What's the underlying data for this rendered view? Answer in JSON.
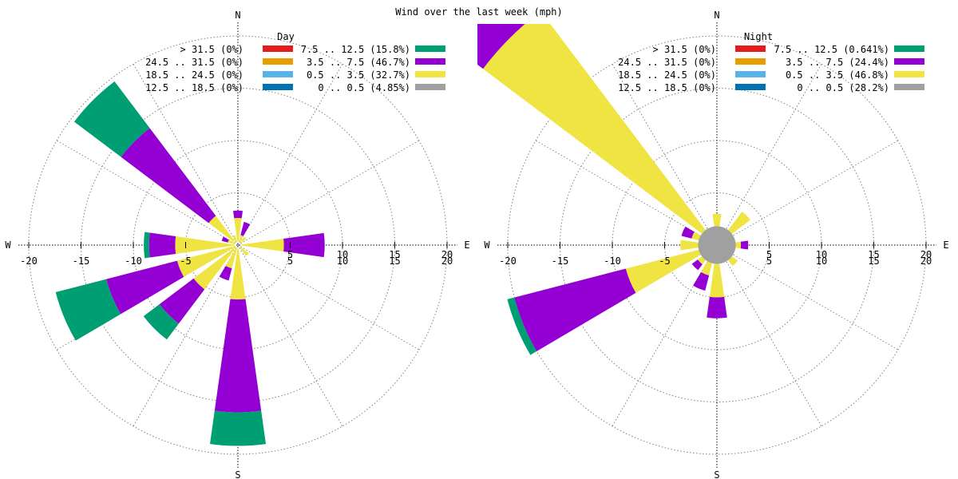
{
  "title": "Wind over the last week (mph)",
  "compass": {
    "n": "N",
    "s": "S",
    "e": "E",
    "w": "W"
  },
  "colors": {
    "gt31_5": "#e41a1c",
    "24_5_31_5": "#e69f00",
    "18_5_24_5": "#56b4e9",
    "12_5_18_5": "#0072b2",
    "7_5_12_5": "#009e73",
    "3_5_7_5": "#9400d3",
    "0_5_3_5": "#f0e442",
    "calm": "#a0a0a0",
    "grid": "#808080"
  },
  "chart_data": [
    {
      "type": "wind-rose",
      "title": "Day",
      "axis_ticks": [
        -20,
        -15,
        -10,
        -5,
        5,
        10,
        15,
        20
      ],
      "rmax": 20,
      "legend": [
        {
          "label": "> 31.5 (0%)",
          "color_key": "gt31_5"
        },
        {
          "label": "24.5 .. 31.5 (0%)",
          "color_key": "24_5_31_5"
        },
        {
          "label": "18.5 .. 24.5 (0%)",
          "color_key": "18_5_24_5"
        },
        {
          "label": "12.5 .. 18.5 (0%)",
          "color_key": "12_5_18_5"
        },
        {
          "label": "7.5 .. 12.5 (15.8%)",
          "color_key": "7_5_12_5"
        },
        {
          "label": "3.5 .. 7.5 (46.7%)",
          "color_key": "3_5_7_5"
        },
        {
          "label": "0.5 .. 3.5 (32.7%)",
          "color_key": "0_5_3_5"
        },
        {
          "label": "0 .. 0.5 (4.85%)",
          "color_key": "calm"
        }
      ],
      "calm_radius": 0.1,
      "sectors": [
        {
          "dir": 0,
          "bands": [
            {
              "band": "0_5_3_5",
              "r0": 0.3,
              "r1": 2.6
            },
            {
              "band": "3_5_7_5",
              "r0": 2.6,
              "r1": 3.3
            }
          ]
        },
        {
          "dir": 22.5,
          "bands": [
            {
              "band": "0_5_3_5",
              "r0": 0.3,
              "r1": 1.0
            },
            {
              "band": "3_5_7_5",
              "r0": 1.0,
              "r1": 2.3
            }
          ]
        },
        {
          "dir": 45,
          "bands": [
            {
              "band": "0_5_3_5",
              "r0": 0.3,
              "r1": 1.0
            }
          ]
        },
        {
          "dir": 90,
          "bands": [
            {
              "band": "0_5_3_5",
              "r0": 0.3,
              "r1": 4.4
            },
            {
              "band": "3_5_7_5",
              "r0": 4.4,
              "r1": 8.3
            }
          ]
        },
        {
          "dir": 135,
          "bands": [
            {
              "band": "0_5_3_5",
              "r0": 0.3,
              "r1": 1.3
            }
          ]
        },
        {
          "dir": 180,
          "bands": [
            {
              "band": "0_5_3_5",
              "r0": 0.3,
              "r1": 5.2
            },
            {
              "band": "3_5_7_5",
              "r0": 5.2,
              "r1": 16.0
            },
            {
              "band": "7_5_12_5",
              "r0": 16.0,
              "r1": 19.2
            }
          ]
        },
        {
          "dir": 202.5,
          "bands": [
            {
              "band": "0_5_3_5",
              "r0": 0.3,
              "r1": 2.3
            },
            {
              "band": "3_5_7_5",
              "r0": 2.3,
              "r1": 3.5
            }
          ]
        },
        {
          "dir": 225,
          "bands": [
            {
              "band": "0_5_3_5",
              "r0": 0.3,
              "r1": 5.3
            },
            {
              "band": "3_5_7_5",
              "r0": 5.3,
              "r1": 9.4
            },
            {
              "band": "7_5_12_5",
              "r0": 9.4,
              "r1": 11.3
            }
          ]
        },
        {
          "dir": 247.5,
          "bands": [
            {
              "band": "0_5_3_5",
              "r0": 0.3,
              "r1": 6.0
            },
            {
              "band": "3_5_7_5",
              "r0": 6.0,
              "r1": 13.0
            },
            {
              "band": "7_5_12_5",
              "r0": 13.0,
              "r1": 18.0
            }
          ]
        },
        {
          "dir": 270,
          "bands": [
            {
              "band": "0_5_3_5",
              "r0": 0.3,
              "r1": 6.0
            },
            {
              "band": "3_5_7_5",
              "r0": 6.0,
              "r1": 8.5
            },
            {
              "band": "7_5_12_5",
              "r0": 8.5,
              "r1": 9.0
            }
          ]
        },
        {
          "dir": 292.5,
          "bands": [
            {
              "band": "0_5_3_5",
              "r0": 0.3,
              "r1": 1.0
            },
            {
              "band": "3_5_7_5",
              "r0": 1.0,
              "r1": 1.6
            }
          ]
        },
        {
          "dir": 315,
          "bands": [
            {
              "band": "0_5_3_5",
              "r0": 0.3,
              "r1": 3.5
            },
            {
              "band": "3_5_7_5",
              "r0": 3.5,
              "r1": 14.0
            },
            {
              "band": "7_5_12_5",
              "r0": 14.0,
              "r1": 19.6
            }
          ]
        },
        {
          "dir": 337.5,
          "bands": [
            {
              "band": "0_5_3_5",
              "r0": 0.3,
              "r1": 1.0
            }
          ]
        }
      ]
    },
    {
      "type": "wind-rose",
      "title": "Night",
      "axis_ticks": [
        -20,
        -15,
        -10,
        -5,
        5,
        10,
        15,
        20
      ],
      "rmax": 20,
      "legend": [
        {
          "label": "> 31.5 (0%)",
          "color_key": "gt31_5"
        },
        {
          "label": "24.5 .. 31.5 (0%)",
          "color_key": "24_5_31_5"
        },
        {
          "label": "18.5 .. 24.5 (0%)",
          "color_key": "18_5_24_5"
        },
        {
          "label": "12.5 .. 18.5 (0%)",
          "color_key": "12_5_18_5"
        },
        {
          "label": "7.5 .. 12.5 (0.641%)",
          "color_key": "7_5_12_5"
        },
        {
          "label": "3.5 .. 7.5 (24.4%)",
          "color_key": "3_5_7_5"
        },
        {
          "label": "0.5 .. 3.5 (46.8%)",
          "color_key": "0_5_3_5"
        },
        {
          "label": "0 .. 0.5 (28.2%)",
          "color_key": "calm"
        }
      ],
      "calm_radius": 1.8,
      "sectors": [
        {
          "dir": 0,
          "bands": [
            {
              "band": "0_5_3_5",
              "r0": 1.8,
              "r1": 3.0
            }
          ]
        },
        {
          "dir": 45,
          "bands": [
            {
              "band": "0_5_3_5",
              "r0": 1.8,
              "r1": 4.0
            }
          ]
        },
        {
          "dir": 90,
          "bands": [
            {
              "band": "0_5_3_5",
              "r0": 1.8,
              "r1": 2.3
            },
            {
              "band": "3_5_7_5",
              "r0": 2.3,
              "r1": 3.0
            }
          ]
        },
        {
          "dir": 135,
          "bands": [
            {
              "band": "0_5_3_5",
              "r0": 1.8,
              "r1": 2.5
            }
          ]
        },
        {
          "dir": 180,
          "bands": [
            {
              "band": "0_5_3_5",
              "r0": 1.8,
              "r1": 5.0
            },
            {
              "band": "3_5_7_5",
              "r0": 5.0,
              "r1": 7.0
            }
          ]
        },
        {
          "dir": 202.5,
          "bands": [
            {
              "band": "0_5_3_5",
              "r0": 1.8,
              "r1": 3.0
            },
            {
              "band": "3_5_7_5",
              "r0": 3.0,
              "r1": 4.5
            }
          ]
        },
        {
          "dir": 225,
          "bands": [
            {
              "band": "0_5_3_5",
              "r0": 1.8,
              "r1": 2.3
            },
            {
              "band": "3_5_7_5",
              "r0": 2.3,
              "r1": 3.0
            }
          ]
        },
        {
          "dir": 247.5,
          "bands": [
            {
              "band": "0_5_3_5",
              "r0": 1.8,
              "r1": 9.0
            },
            {
              "band": "3_5_7_5",
              "r0": 9.0,
              "r1": 20.0
            },
            {
              "band": "7_5_12_5",
              "r0": 20.0,
              "r1": 20.7
            }
          ]
        },
        {
          "dir": 270,
          "bands": [
            {
              "band": "0_5_3_5",
              "r0": 1.8,
              "r1": 3.5
            }
          ]
        },
        {
          "dir": 292.5,
          "bands": [
            {
              "band": "0_5_3_5",
              "r0": 1.8,
              "r1": 2.5
            },
            {
              "band": "3_5_7_5",
              "r0": 2.5,
              "r1": 3.5
            }
          ]
        },
        {
          "dir": 315,
          "bands": [
            {
              "band": "0_5_3_5",
              "r0": 1.8,
              "r1": 28.0
            },
            {
              "band": "3_5_7_5",
              "r0": 28.0,
              "r1": 32.0
            }
          ]
        }
      ]
    }
  ]
}
